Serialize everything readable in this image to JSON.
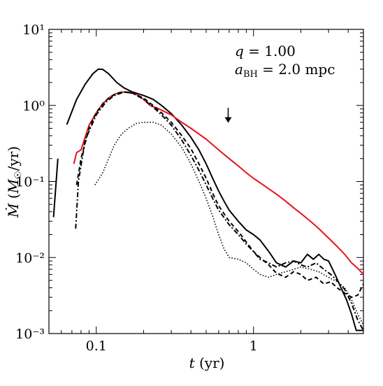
{
  "chart_data": {
    "type": "line",
    "xscale": "log",
    "yscale": "log",
    "xlim": [
      0.05,
      5.0
    ],
    "ylim": [
      0.001,
      10
    ],
    "grid": false,
    "xlabel": "t   (yr)",
    "ylabel": "Ṁ   (M☉/yr)",
    "x_ticks": [
      {
        "value": 0.1,
        "label": "0.1"
      },
      {
        "value": 1,
        "label": "1"
      }
    ],
    "y_ticks": [
      {
        "value": 0.001,
        "label": "10⁻³"
      },
      {
        "value": 0.01,
        "label": "10⁻²"
      },
      {
        "value": 0.1,
        "label": "10⁻¹"
      },
      {
        "value": 1,
        "label": "10⁰"
      },
      {
        "value": 10,
        "label": "10¹"
      }
    ],
    "annotations": [
      {
        "text": "q = 1.00"
      },
      {
        "text": "a_BH = 2.0 mpc"
      }
    ],
    "arrow": {
      "x": 0.69,
      "y_top": 0.93,
      "y_bottom": 0.59
    },
    "series": [
      {
        "style": "solid",
        "color": "#000000",
        "segments": [
          [
            [
              0.0535,
              0.034
            ],
            [
              0.057,
              0.2
            ]
          ],
          [
            [
              0.065,
              0.56
            ],
            [
              0.075,
              1.2
            ],
            [
              0.085,
              1.9
            ],
            [
              0.095,
              2.6
            ],
            [
              0.103,
              3.0
            ],
            [
              0.11,
              2.98
            ],
            [
              0.12,
              2.6
            ],
            [
              0.135,
              2.0
            ],
            [
              0.15,
              1.7
            ],
            [
              0.17,
              1.5
            ],
            [
              0.2,
              1.35
            ],
            [
              0.23,
              1.2
            ],
            [
              0.26,
              1.0
            ],
            [
              0.3,
              0.78
            ],
            [
              0.35,
              0.55
            ],
            [
              0.4,
              0.38
            ],
            [
              0.45,
              0.26
            ],
            [
              0.5,
              0.17
            ],
            [
              0.55,
              0.11
            ],
            [
              0.6,
              0.075
            ],
            [
              0.65,
              0.055
            ],
            [
              0.7,
              0.042
            ],
            [
              0.8,
              0.03
            ],
            [
              0.9,
              0.023
            ],
            [
              1.0,
              0.02
            ],
            [
              1.1,
              0.017
            ],
            [
              1.25,
              0.012
            ],
            [
              1.4,
              0.0085
            ],
            [
              1.6,
              0.0075
            ],
            [
              1.8,
              0.009
            ],
            [
              2.0,
              0.0085
            ],
            [
              2.2,
              0.011
            ],
            [
              2.4,
              0.0095
            ],
            [
              2.6,
              0.011
            ],
            [
              2.8,
              0.0095
            ],
            [
              3.0,
              0.009
            ],
            [
              3.3,
              0.006
            ],
            [
              3.6,
              0.004
            ],
            [
              3.9,
              0.0028
            ],
            [
              4.2,
              0.0018
            ],
            [
              4.5,
              0.0011
            ],
            [
              4.8,
              0.0009
            ],
            [
              5.0,
              0.0011
            ]
          ]
        ]
      },
      {
        "style": "solid",
        "color": "#e8141b",
        "segments": [
          [
            [
              0.072,
              0.17
            ],
            [
              0.075,
              0.24
            ],
            [
              0.08,
              0.26
            ],
            [
              0.09,
              0.55
            ],
            [
              0.1,
              0.8
            ],
            [
              0.11,
              1.05
            ],
            [
              0.12,
              1.25
            ],
            [
              0.13,
              1.4
            ],
            [
              0.145,
              1.5
            ],
            [
              0.16,
              1.5
            ],
            [
              0.18,
              1.4
            ],
            [
              0.2,
              1.2
            ],
            [
              0.22,
              1.0
            ],
            [
              0.25,
              0.9
            ],
            [
              0.3,
              0.75
            ],
            [
              0.35,
              0.6
            ],
            [
              0.4,
              0.5
            ],
            [
              0.5,
              0.36
            ],
            [
              0.6,
              0.26
            ],
            [
              0.7,
              0.2
            ],
            [
              0.8,
              0.16
            ],
            [
              0.9,
              0.13
            ],
            [
              1.0,
              0.11
            ],
            [
              1.2,
              0.085
            ],
            [
              1.4,
              0.068
            ],
            [
              1.6,
              0.055
            ],
            [
              1.8,
              0.045
            ],
            [
              2.0,
              0.038
            ],
            [
              2.3,
              0.03
            ],
            [
              2.6,
              0.024
            ],
            [
              3.0,
              0.018
            ],
            [
              3.4,
              0.014
            ],
            [
              3.8,
              0.011
            ],
            [
              4.2,
              0.0085
            ],
            [
              4.6,
              0.0072
            ],
            [
              5.0,
              0.006
            ]
          ]
        ]
      },
      {
        "style": "dashed",
        "color": "#000000",
        "segments": [
          [
            [
              0.075,
              0.09
            ],
            [
              0.08,
              0.2
            ],
            [
              0.09,
              0.5
            ],
            [
              0.1,
              0.8
            ],
            [
              0.11,
              1.05
            ],
            [
              0.12,
              1.25
            ],
            [
              0.135,
              1.45
            ],
            [
              0.15,
              1.5
            ],
            [
              0.17,
              1.45
            ],
            [
              0.2,
              1.25
            ],
            [
              0.23,
              1.0
            ],
            [
              0.26,
              0.8
            ],
            [
              0.3,
              0.6
            ],
            [
              0.35,
              0.4
            ],
            [
              0.4,
              0.27
            ],
            [
              0.45,
              0.17
            ],
            [
              0.5,
              0.11
            ],
            [
              0.55,
              0.07
            ],
            [
              0.6,
              0.048
            ],
            [
              0.7,
              0.03
            ],
            [
              0.8,
              0.022
            ],
            [
              0.9,
              0.016
            ],
            [
              1.0,
              0.012
            ],
            [
              1.1,
              0.01
            ],
            [
              1.25,
              0.008
            ],
            [
              1.4,
              0.0062
            ],
            [
              1.6,
              0.0055
            ],
            [
              1.8,
              0.0065
            ],
            [
              2.0,
              0.006
            ],
            [
              2.2,
              0.005
            ],
            [
              2.5,
              0.0055
            ],
            [
              2.8,
              0.0045
            ],
            [
              3.1,
              0.0048
            ],
            [
              3.4,
              0.004
            ],
            [
              3.8,
              0.0034
            ],
            [
              4.2,
              0.003
            ],
            [
              4.6,
              0.0032
            ],
            [
              5.0,
              0.0045
            ]
          ]
        ]
      },
      {
        "style": "dashdot",
        "color": "#000000",
        "segments": [
          [
            [
              0.074,
              0.024
            ],
            [
              0.077,
              0.1
            ],
            [
              0.085,
              0.35
            ],
            [
              0.1,
              0.75
            ],
            [
              0.115,
              1.1
            ],
            [
              0.13,
              1.35
            ],
            [
              0.15,
              1.5
            ],
            [
              0.17,
              1.45
            ],
            [
              0.2,
              1.2
            ],
            [
              0.23,
              0.95
            ],
            [
              0.26,
              0.75
            ],
            [
              0.3,
              0.55
            ],
            [
              0.35,
              0.35
            ],
            [
              0.4,
              0.22
            ],
            [
              0.45,
              0.14
            ],
            [
              0.5,
              0.09
            ],
            [
              0.55,
              0.06
            ],
            [
              0.6,
              0.042
            ],
            [
              0.7,
              0.027
            ],
            [
              0.8,
              0.02
            ],
            [
              0.9,
              0.015
            ],
            [
              1.0,
              0.012
            ],
            [
              1.1,
              0.0095
            ],
            [
              1.25,
              0.0085
            ],
            [
              1.4,
              0.0075
            ],
            [
              1.6,
              0.0085
            ],
            [
              1.8,
              0.009
            ],
            [
              2.0,
              0.008
            ],
            [
              2.2,
              0.0075
            ],
            [
              2.5,
              0.0085
            ],
            [
              2.8,
              0.007
            ],
            [
              3.1,
              0.006
            ],
            [
              3.4,
              0.005
            ],
            [
              3.8,
              0.0038
            ],
            [
              4.2,
              0.0025
            ],
            [
              4.6,
              0.0015
            ],
            [
              5.0,
              0.0011
            ]
          ]
        ]
      },
      {
        "style": "dotted",
        "color": "#000000",
        "segments": [
          [
            [
              0.098,
              0.09
            ],
            [
              0.11,
              0.13
            ],
            [
              0.12,
              0.2
            ],
            [
              0.13,
              0.3
            ],
            [
              0.145,
              0.42
            ],
            [
              0.16,
              0.5
            ],
            [
              0.18,
              0.58
            ],
            [
              0.2,
              0.6
            ],
            [
              0.23,
              0.6
            ],
            [
              0.26,
              0.55
            ],
            [
              0.3,
              0.42
            ],
            [
              0.35,
              0.28
            ],
            [
              0.4,
              0.17
            ],
            [
              0.45,
              0.1
            ],
            [
              0.5,
              0.06
            ],
            [
              0.55,
              0.035
            ],
            [
              0.6,
              0.02
            ],
            [
              0.65,
              0.013
            ],
            [
              0.7,
              0.01
            ],
            [
              0.8,
              0.0095
            ],
            [
              0.9,
              0.0085
            ],
            [
              1.0,
              0.007
            ],
            [
              1.1,
              0.006
            ],
            [
              1.25,
              0.0055
            ],
            [
              1.4,
              0.006
            ],
            [
              1.6,
              0.0065
            ],
            [
              1.8,
              0.007
            ],
            [
              2.0,
              0.0075
            ],
            [
              2.3,
              0.007
            ],
            [
              2.6,
              0.0065
            ],
            [
              3.0,
              0.0055
            ],
            [
              3.4,
              0.0048
            ],
            [
              3.8,
              0.004
            ],
            [
              4.2,
              0.0028
            ],
            [
              4.6,
              0.0018
            ],
            [
              5.0,
              0.0013
            ]
          ]
        ]
      }
    ]
  }
}
